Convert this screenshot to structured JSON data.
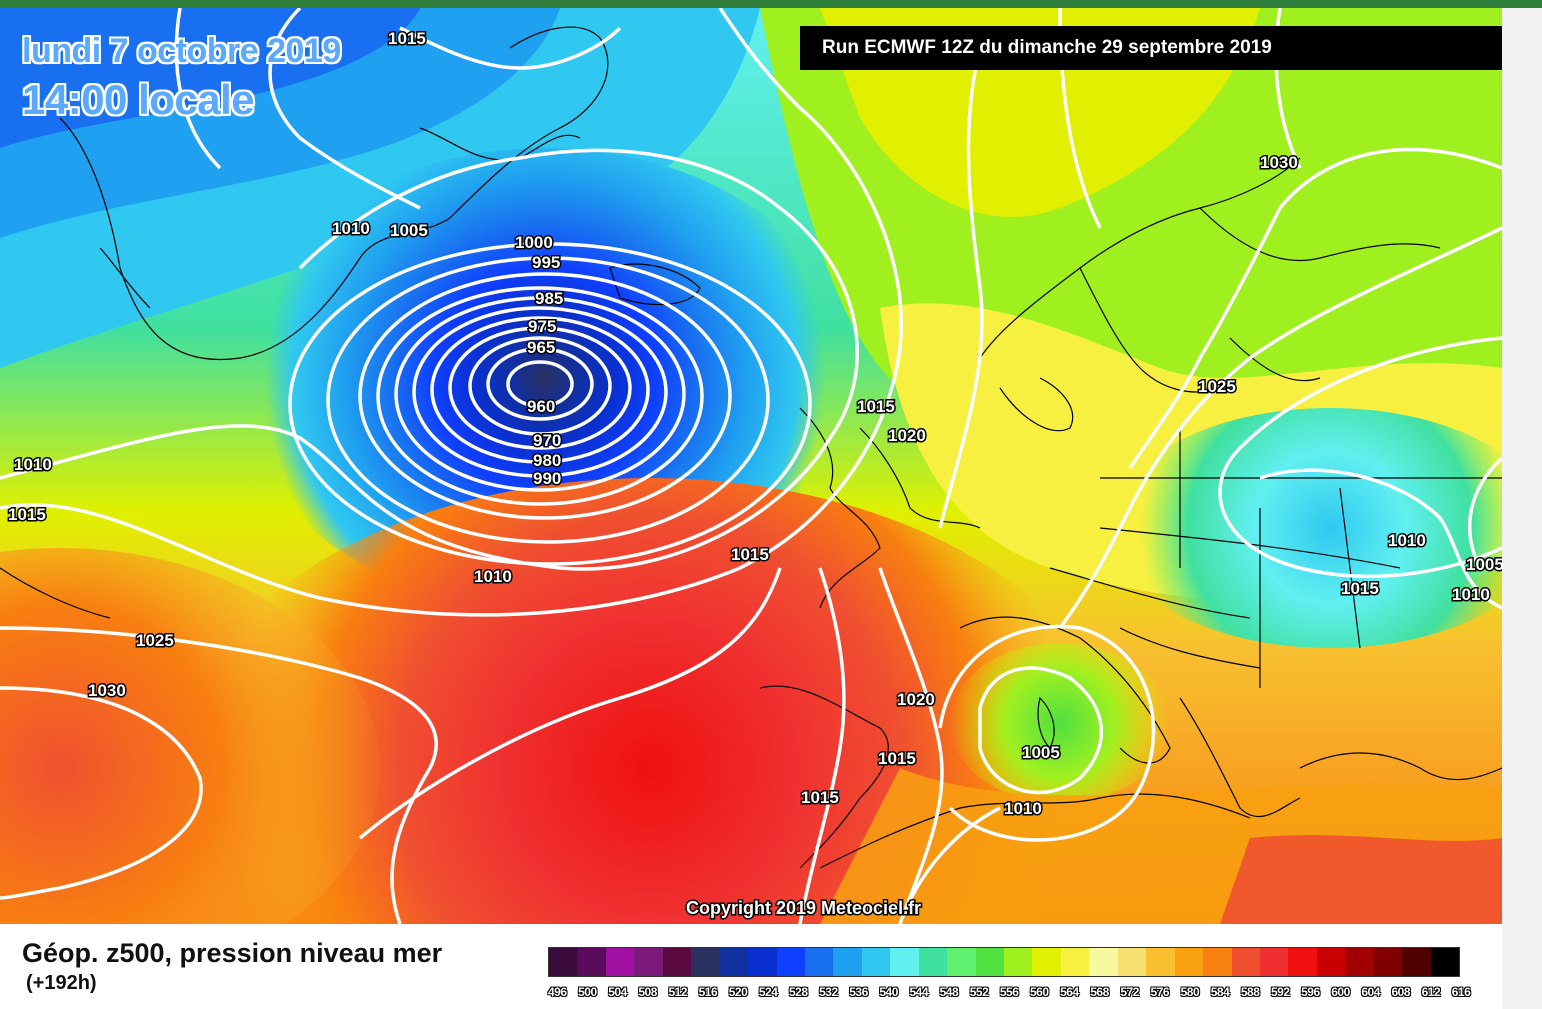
{
  "header": {
    "date_line": "lundi 7 octobre 2019",
    "time_line": "14:00 locale",
    "run_banner": "Run ECMWF 12Z du dimanche 29 septembre 2019"
  },
  "map": {
    "copyright": "Copyright 2019 Meteociel.fr",
    "isobar_labels": [
      "1015",
      "1010",
      "1005",
      "1000",
      "995",
      "985",
      "975",
      "965",
      "960",
      "970",
      "980",
      "990",
      "1010",
      "1015",
      "1010",
      "1025",
      "1030",
      "1015",
      "1020",
      "1015",
      "1030",
      "1025",
      "1010",
      "1015",
      "1010",
      "1005",
      "1020",
      "1015",
      "1005",
      "1015",
      "1010"
    ],
    "low_center_value": "960"
  },
  "legend": {
    "title": "Géop. z500, pression niveau mer",
    "step": "(+192h)",
    "scale_values": [
      "496",
      "500",
      "504",
      "508",
      "512",
      "516",
      "520",
      "524",
      "528",
      "532",
      "536",
      "540",
      "544",
      "548",
      "552",
      "556",
      "560",
      "564",
      "568",
      "572",
      "576",
      "580",
      "584",
      "588",
      "592",
      "596",
      "600",
      "604",
      "608",
      "612",
      "616"
    ],
    "scale_colors": [
      "#3a0a3a",
      "#5a0a5a",
      "#a010a0",
      "#7a1a7a",
      "#5a0a40",
      "#2a3060",
      "#1030a0",
      "#0a30d0",
      "#1040ff",
      "#1870f0",
      "#20a0f0",
      "#30c8f0",
      "#60f0f0",
      "#40e0a0",
      "#60f070",
      "#50e040",
      "#a0f020",
      "#e0f000",
      "#f8f040",
      "#f8f8a0",
      "#f8e070",
      "#f8c030",
      "#f8a010",
      "#f88010",
      "#f05030",
      "#f03030",
      "#f01010",
      "#c80000",
      "#a00000",
      "#800000",
      "#500000",
      "#000000"
    ]
  }
}
